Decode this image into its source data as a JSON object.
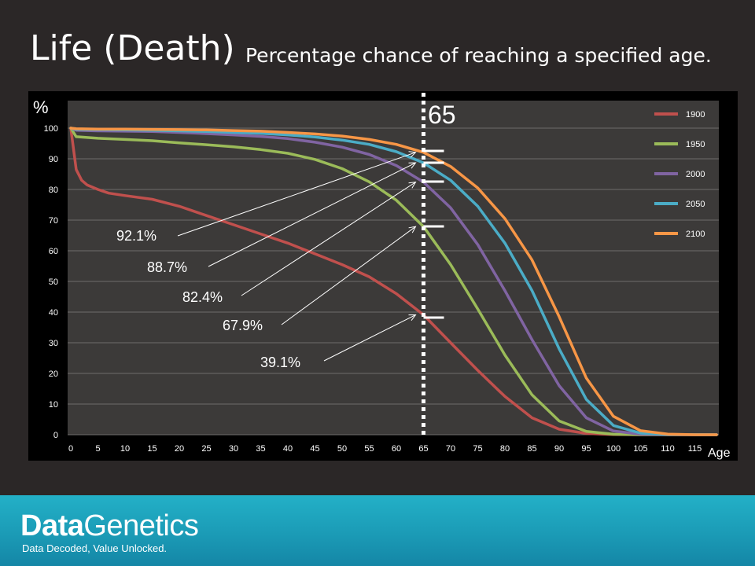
{
  "title": "Life (Death)",
  "subtitle": "Percentage chance of reaching a specified age.",
  "brand": {
    "bold": "Data",
    "rest": "Genetics",
    "tagline": "Data Decoded, Value Unlocked."
  },
  "colors": {
    "1900": "#c0504d",
    "1950": "#9bbb59",
    "2000": "#8064a2",
    "2050": "#4bacc6",
    "2100": "#f79646"
  },
  "chart_data": {
    "type": "line",
    "ylabel": "%",
    "xlabel": "Age",
    "xlim": [
      0,
      119
    ],
    "ylim": [
      0,
      100
    ],
    "x_ticks": [
      0,
      5,
      10,
      15,
      20,
      25,
      30,
      35,
      40,
      45,
      50,
      55,
      60,
      65,
      70,
      75,
      80,
      85,
      90,
      95,
      100,
      105,
      110,
      115
    ],
    "y_ticks": [
      0,
      10,
      20,
      30,
      40,
      50,
      60,
      70,
      80,
      90,
      100
    ],
    "grid": true,
    "legend": "top-right",
    "marker_age": 65,
    "marker_label": "65",
    "series": [
      {
        "name": "1900",
        "color": "#c0504d",
        "points": [
          [
            0,
            100
          ],
          [
            1,
            86.5
          ],
          [
            2,
            83
          ],
          [
            3,
            81.5
          ],
          [
            5,
            80
          ],
          [
            7,
            78.8
          ],
          [
            10,
            78
          ],
          [
            15,
            76.8
          ],
          [
            20,
            74.5
          ],
          [
            25,
            71.5
          ],
          [
            30,
            68.5
          ],
          [
            35,
            65.5
          ],
          [
            40,
            62.5
          ],
          [
            45,
            59
          ],
          [
            50,
            55.5
          ],
          [
            55,
            51.5
          ],
          [
            60,
            46
          ],
          [
            65,
            39.1
          ],
          [
            70,
            30
          ],
          [
            75,
            21
          ],
          [
            80,
            12.5
          ],
          [
            85,
            5.5
          ],
          [
            90,
            1.8
          ],
          [
            95,
            0.4
          ],
          [
            100,
            0.05
          ],
          [
            105,
            0
          ],
          [
            119,
            0
          ]
        ]
      },
      {
        "name": "1950",
        "color": "#9bbb59",
        "points": [
          [
            0,
            100
          ],
          [
            1,
            97.2
          ],
          [
            5,
            96.7
          ],
          [
            10,
            96.3
          ],
          [
            15,
            95.9
          ],
          [
            20,
            95.2
          ],
          [
            25,
            94.6
          ],
          [
            30,
            93.9
          ],
          [
            35,
            93
          ],
          [
            40,
            91.8
          ],
          [
            45,
            89.8
          ],
          [
            50,
            86.8
          ],
          [
            55,
            82.5
          ],
          [
            60,
            76.5
          ],
          [
            65,
            67.9
          ],
          [
            70,
            55.5
          ],
          [
            75,
            41
          ],
          [
            80,
            26
          ],
          [
            85,
            13
          ],
          [
            90,
            4.5
          ],
          [
            95,
            1.1
          ],
          [
            100,
            0.15
          ],
          [
            105,
            0
          ],
          [
            119,
            0
          ]
        ]
      },
      {
        "name": "2000",
        "color": "#8064a2",
        "points": [
          [
            0,
            100
          ],
          [
            1,
            99.3
          ],
          [
            5,
            99.1
          ],
          [
            10,
            99
          ],
          [
            15,
            98.9
          ],
          [
            20,
            98.6
          ],
          [
            25,
            98.2
          ],
          [
            30,
            97.8
          ],
          [
            35,
            97.3
          ],
          [
            40,
            96.6
          ],
          [
            45,
            95.4
          ],
          [
            50,
            93.8
          ],
          [
            55,
            91.4
          ],
          [
            60,
            87.8
          ],
          [
            65,
            82.4
          ],
          [
            70,
            74
          ],
          [
            75,
            62
          ],
          [
            80,
            47
          ],
          [
            85,
            31
          ],
          [
            90,
            16
          ],
          [
            95,
            5.5
          ],
          [
            100,
            1.2
          ],
          [
            105,
            0.15
          ],
          [
            110,
            0
          ],
          [
            119,
            0
          ]
        ]
      },
      {
        "name": "2050",
        "color": "#4bacc6",
        "points": [
          [
            0,
            100
          ],
          [
            1,
            99.6
          ],
          [
            5,
            99.5
          ],
          [
            10,
            99.4
          ],
          [
            15,
            99.3
          ],
          [
            20,
            99.1
          ],
          [
            25,
            98.9
          ],
          [
            30,
            98.6
          ],
          [
            35,
            98.3
          ],
          [
            40,
            97.8
          ],
          [
            45,
            97.1
          ],
          [
            50,
            96.1
          ],
          [
            55,
            94.7
          ],
          [
            60,
            92.3
          ],
          [
            65,
            88.7
          ],
          [
            70,
            83
          ],
          [
            75,
            74.5
          ],
          [
            80,
            62.5
          ],
          [
            85,
            47
          ],
          [
            90,
            28
          ],
          [
            95,
            11.5
          ],
          [
            100,
            3
          ],
          [
            105,
            0.5
          ],
          [
            110,
            0.05
          ],
          [
            119,
            0
          ]
        ]
      },
      {
        "name": "2100",
        "color": "#f79646",
        "points": [
          [
            0,
            100
          ],
          [
            1,
            99.8
          ],
          [
            5,
            99.7
          ],
          [
            10,
            99.7
          ],
          [
            15,
            99.6
          ],
          [
            20,
            99.5
          ],
          [
            25,
            99.4
          ],
          [
            30,
            99.2
          ],
          [
            35,
            99
          ],
          [
            40,
            98.6
          ],
          [
            45,
            98.1
          ],
          [
            50,
            97.4
          ],
          [
            55,
            96.3
          ],
          [
            60,
            94.7
          ],
          [
            65,
            92.1
          ],
          [
            70,
            87.5
          ],
          [
            75,
            80.5
          ],
          [
            80,
            70.5
          ],
          [
            85,
            57
          ],
          [
            90,
            38.5
          ],
          [
            95,
            18.5
          ],
          [
            100,
            6
          ],
          [
            105,
            1.3
          ],
          [
            110,
            0.2
          ],
          [
            115,
            0
          ],
          [
            119,
            0
          ]
        ]
      }
    ],
    "annotations": [
      {
        "label": "92.1%",
        "value": 92.1
      },
      {
        "label": "88.7%",
        "value": 88.7
      },
      {
        "label": "82.4%",
        "value": 82.4
      },
      {
        "label": "67.9%",
        "value": 67.9
      },
      {
        "label": "39.1%",
        "value": 39.1
      }
    ]
  }
}
